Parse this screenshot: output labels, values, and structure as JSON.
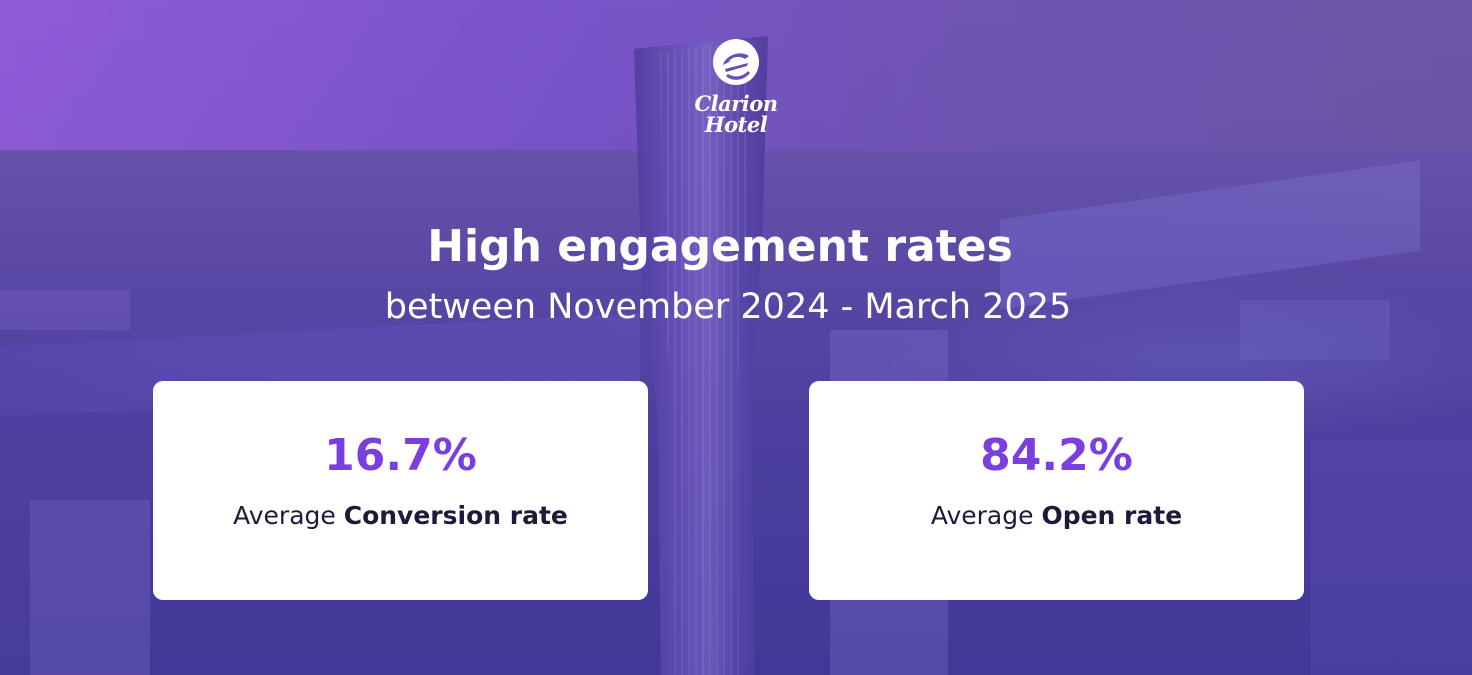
{
  "brand": {
    "name_line1": "Clarion",
    "name_line2": "Hotel",
    "logo_icon": "clarion-e-mark"
  },
  "headline": "High engagement rates",
  "subheadline": "between November 2024 - March 2025",
  "stats": [
    {
      "value": "16.7%",
      "label_prefix": "Average",
      "label_bold": "Conversion rate"
    },
    {
      "value": "84.2%",
      "label_prefix": "Average",
      "label_bold": "Open rate"
    }
  ],
  "colors": {
    "accent": "#7b3fe0",
    "text_dark": "#1e1b3a",
    "card_bg": "#ffffff",
    "overlay_purple": "#6a4fc0"
  }
}
